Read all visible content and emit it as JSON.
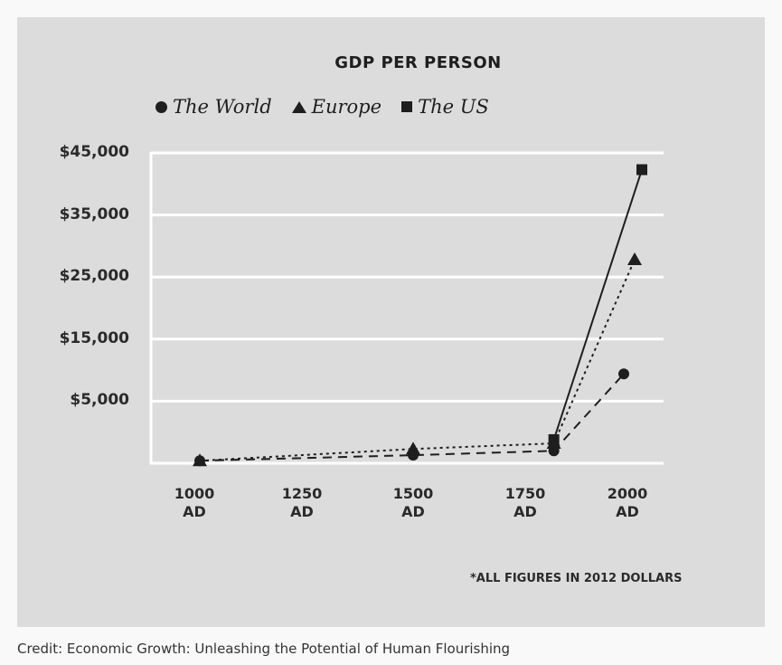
{
  "chart_data": {
    "type": "line",
    "title": "GDP PER PERSON",
    "xlabel": "",
    "ylabel": "",
    "x_tick_labels": [
      "1000\nAD",
      "1250\nAD",
      "1500\nAD",
      "1750\nAD",
      "2000\nAD"
    ],
    "x_ticks": [
      1000,
      1250,
      1500,
      1750,
      2000
    ],
    "y_tick_labels": [
      "$45,000",
      "$35,000",
      "$25,000",
      "$15,000",
      "$5,000"
    ],
    "y_ticks": [
      45000,
      35000,
      25000,
      15000,
      5000
    ],
    "ylim": [
      0,
      45000
    ],
    "grid": true,
    "legend_placement": "top",
    "legend": [
      {
        "name": "The World",
        "marker": "circle",
        "line": "dashed"
      },
      {
        "name": "Europe",
        "marker": "triangle",
        "line": "dotted"
      },
      {
        "name": "The US",
        "marker": "square",
        "line": "solid"
      }
    ],
    "series": [
      {
        "name": "The World",
        "marker": "circle",
        "line": "dashed",
        "x": [
          1000,
          1500,
          1820,
          2000
        ],
        "values": [
          200,
          650,
          1000,
          9400
        ]
      },
      {
        "name": "Europe",
        "marker": "triangle",
        "line": "dotted",
        "x": [
          1000,
          1500,
          1820,
          2000
        ],
        "values": [
          200,
          1150,
          1600,
          27800
        ]
      },
      {
        "name": "The US",
        "marker": "square",
        "line": "solid",
        "x": [
          1820,
          2000
        ],
        "values": [
          1900,
          42300
        ]
      }
    ],
    "annotation": "*ALL FIGURES IN 2012 DOLLARS"
  },
  "credit": "Credit: Economic Growth: Unleashing the Potential of Human Flourishing",
  "colors": {
    "panel_background": "#dcdcdd",
    "page_background": "#f9f9f9",
    "gridline": "#ffffff",
    "ink": "#1e1e1e"
  }
}
